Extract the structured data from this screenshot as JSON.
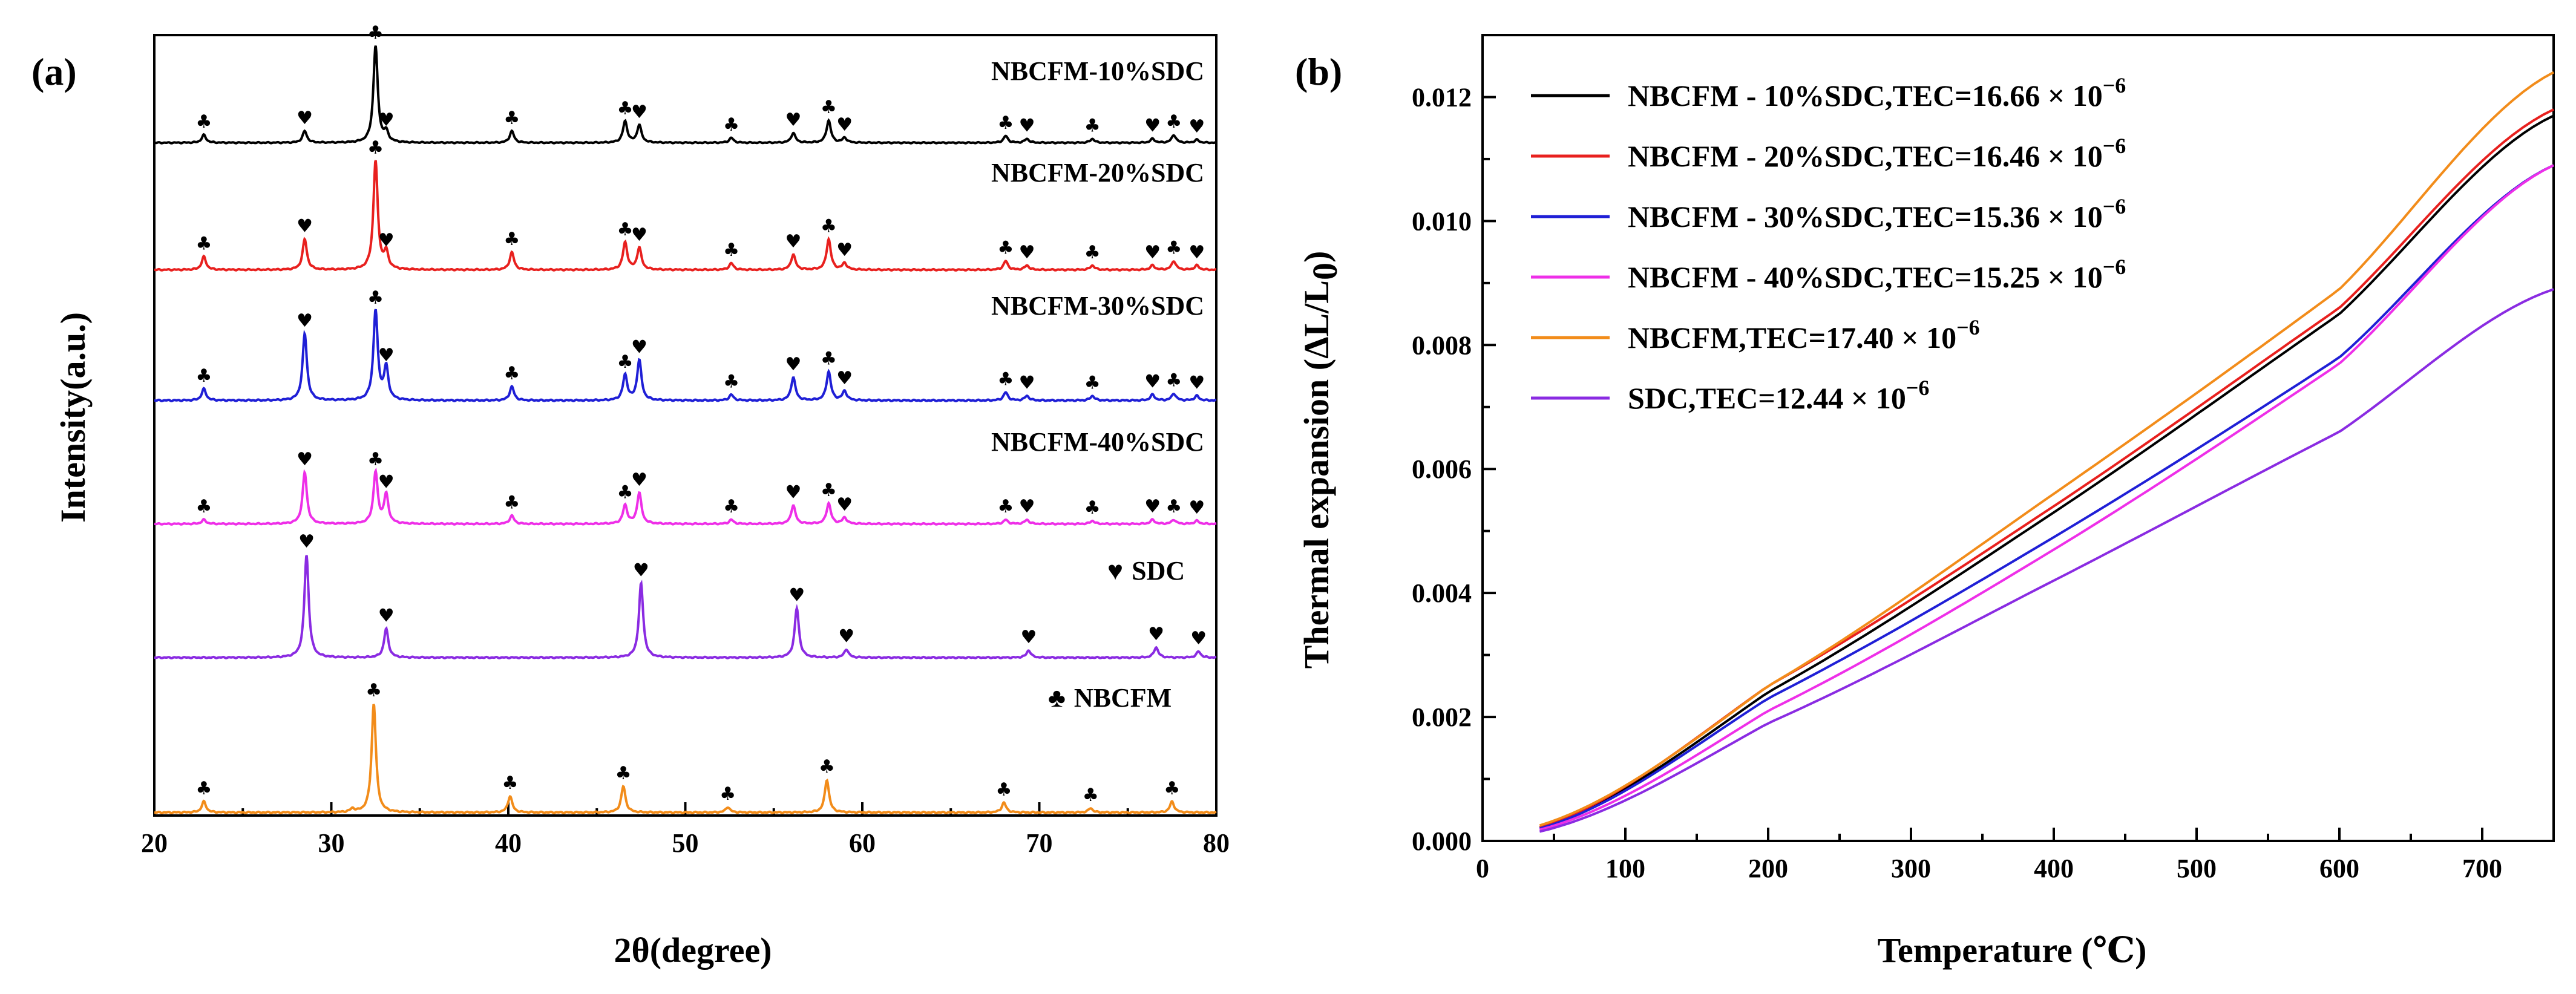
{
  "chart_data": [
    {
      "panel": "(a)",
      "type": "line",
      "xlabel": "2θ(degree)",
      "ylabel": "Intensity(a.u.)",
      "xlim": [
        20,
        80
      ],
      "x_ticks": [
        20,
        30,
        40,
        50,
        60,
        70,
        80
      ],
      "marker_legend": [
        {
          "symbol": "♥",
          "label": "SDC"
        },
        {
          "symbol": "♣",
          "label": "NBCFM"
        }
      ],
      "series": [
        {
          "name": "NBCFM-10%SDC",
          "color": "#000000",
          "peaks": [
            {
              "x": 22.8,
              "h": 0.08,
              "m": "♣"
            },
            {
              "x": 28.5,
              "h": 0.12,
              "m": "♥"
            },
            {
              "x": 32.5,
              "h": 1.0,
              "m": "♣"
            },
            {
              "x": 33.1,
              "h": 0.1,
              "m": "♥"
            },
            {
              "x": 40.2,
              "h": 0.12,
              "m": "♣"
            },
            {
              "x": 46.6,
              "h": 0.22,
              "m": "♣"
            },
            {
              "x": 47.4,
              "h": 0.18,
              "m": "♥"
            },
            {
              "x": 52.6,
              "h": 0.05,
              "m": "♣"
            },
            {
              "x": 56.1,
              "h": 0.1,
              "m": "♥"
            },
            {
              "x": 58.1,
              "h": 0.23,
              "m": "♣"
            },
            {
              "x": 59.0,
              "h": 0.05,
              "m": "♥"
            },
            {
              "x": 68.1,
              "h": 0.07,
              "m": "♣"
            },
            {
              "x": 69.3,
              "h": 0.04,
              "m": "♥"
            },
            {
              "x": 73.0,
              "h": 0.04,
              "m": "♣"
            },
            {
              "x": 76.4,
              "h": 0.04,
              "m": "♥"
            },
            {
              "x": 77.6,
              "h": 0.08,
              "m": "♣"
            },
            {
              "x": 78.9,
              "h": 0.03,
              "m": "♥"
            }
          ]
        },
        {
          "name": "NBCFM-20%SDC",
          "color": "#e8201e",
          "peaks": [
            {
              "x": 22.8,
              "h": 0.12,
              "m": "♣"
            },
            {
              "x": 28.5,
              "h": 0.28,
              "m": "♥"
            },
            {
              "x": 32.5,
              "h": 1.0,
              "m": "♣"
            },
            {
              "x": 33.1,
              "h": 0.15,
              "m": "♥"
            },
            {
              "x": 40.2,
              "h": 0.16,
              "m": "♣"
            },
            {
              "x": 46.6,
              "h": 0.25,
              "m": "♣"
            },
            {
              "x": 47.4,
              "h": 0.2,
              "m": "♥"
            },
            {
              "x": 52.6,
              "h": 0.06,
              "m": "♣"
            },
            {
              "x": 56.1,
              "h": 0.14,
              "m": "♥"
            },
            {
              "x": 58.1,
              "h": 0.28,
              "m": "♣"
            },
            {
              "x": 59.0,
              "h": 0.06,
              "m": "♥"
            },
            {
              "x": 68.1,
              "h": 0.08,
              "m": "♣"
            },
            {
              "x": 69.3,
              "h": 0.04,
              "m": "♥"
            },
            {
              "x": 73.0,
              "h": 0.04,
              "m": "♣"
            },
            {
              "x": 76.4,
              "h": 0.04,
              "m": "♥"
            },
            {
              "x": 77.6,
              "h": 0.08,
              "m": "♣"
            },
            {
              "x": 78.9,
              "h": 0.04,
              "m": "♥"
            }
          ]
        },
        {
          "name": "NBCFM-30%SDC",
          "color": "#1f1fd6",
          "peaks": [
            {
              "x": 22.8,
              "h": 0.1,
              "m": "♣"
            },
            {
              "x": 28.5,
              "h": 0.58,
              "m": "♥"
            },
            {
              "x": 32.5,
              "h": 0.78,
              "m": "♣"
            },
            {
              "x": 33.1,
              "h": 0.28,
              "m": "♥"
            },
            {
              "x": 40.2,
              "h": 0.12,
              "m": "♣"
            },
            {
              "x": 46.6,
              "h": 0.22,
              "m": "♣"
            },
            {
              "x": 47.4,
              "h": 0.35,
              "m": "♥"
            },
            {
              "x": 52.6,
              "h": 0.05,
              "m": "♣"
            },
            {
              "x": 56.1,
              "h": 0.2,
              "m": "♥"
            },
            {
              "x": 58.1,
              "h": 0.25,
              "m": "♣"
            },
            {
              "x": 59.0,
              "h": 0.08,
              "m": "♥"
            },
            {
              "x": 68.1,
              "h": 0.07,
              "m": "♣"
            },
            {
              "x": 69.3,
              "h": 0.04,
              "m": "♥"
            },
            {
              "x": 73.0,
              "h": 0.04,
              "m": "♣"
            },
            {
              "x": 76.4,
              "h": 0.05,
              "m": "♥"
            },
            {
              "x": 77.6,
              "h": 0.06,
              "m": "♣"
            },
            {
              "x": 78.9,
              "h": 0.04,
              "m": "♥"
            }
          ]
        },
        {
          "name": "NBCFM-40%SDC",
          "color": "#ee2fe8",
          "peaks": [
            {
              "x": 22.8,
              "h": 0.04,
              "m": "♣"
            },
            {
              "x": 28.5,
              "h": 0.5,
              "m": "♥"
            },
            {
              "x": 32.5,
              "h": 0.5,
              "m": "♣"
            },
            {
              "x": 33.1,
              "h": 0.28,
              "m": "♥"
            },
            {
              "x": 40.2,
              "h": 0.08,
              "m": "♣"
            },
            {
              "x": 46.6,
              "h": 0.18,
              "m": "♣"
            },
            {
              "x": 47.4,
              "h": 0.3,
              "m": "♥"
            },
            {
              "x": 52.6,
              "h": 0.04,
              "m": "♣"
            },
            {
              "x": 56.1,
              "h": 0.18,
              "m": "♥"
            },
            {
              "x": 58.1,
              "h": 0.2,
              "m": "♣"
            },
            {
              "x": 59.0,
              "h": 0.06,
              "m": "♥"
            },
            {
              "x": 68.1,
              "h": 0.04,
              "m": "♣"
            },
            {
              "x": 69.3,
              "h": 0.04,
              "m": "♥"
            },
            {
              "x": 73.0,
              "h": 0.03,
              "m": "♣"
            },
            {
              "x": 76.4,
              "h": 0.04,
              "m": "♥"
            },
            {
              "x": 77.6,
              "h": 0.04,
              "m": "♣"
            },
            {
              "x": 78.9,
              "h": 0.03,
              "m": "♥"
            }
          ]
        },
        {
          "name": "SDC",
          "color": "#8a2be2",
          "peaks": [
            {
              "x": 28.6,
              "h": 1.0,
              "m": "♥"
            },
            {
              "x": 33.1,
              "h": 0.28,
              "m": "♥"
            },
            {
              "x": 47.5,
              "h": 0.72,
              "m": "♥"
            },
            {
              "x": 56.3,
              "h": 0.48,
              "m": "♥"
            },
            {
              "x": 59.1,
              "h": 0.08,
              "m": "♥"
            },
            {
              "x": 69.4,
              "h": 0.07,
              "m": "♥"
            },
            {
              "x": 76.6,
              "h": 0.1,
              "m": "♥"
            },
            {
              "x": 79.0,
              "h": 0.06,
              "m": "♥"
            }
          ]
        },
        {
          "name": "NBCFM",
          "color": "#f28c1a",
          "peaks": [
            {
              "x": 22.8,
              "h": 0.1,
              "m": "♣"
            },
            {
              "x": 31.2,
              "h": 0.03,
              "m": ""
            },
            {
              "x": 32.4,
              "h": 1.0,
              "m": "♣"
            },
            {
              "x": 40.1,
              "h": 0.15,
              "m": "♣"
            },
            {
              "x": 46.5,
              "h": 0.24,
              "m": "♣"
            },
            {
              "x": 52.4,
              "h": 0.05,
              "m": "♣"
            },
            {
              "x": 58.0,
              "h": 0.3,
              "m": "♣"
            },
            {
              "x": 68.0,
              "h": 0.09,
              "m": "♣"
            },
            {
              "x": 72.9,
              "h": 0.04,
              "m": "♣"
            },
            {
              "x": 77.5,
              "h": 0.1,
              "m": "♣"
            }
          ]
        }
      ]
    },
    {
      "panel": "(b)",
      "type": "line",
      "xlabel": "Temperature (℃)",
      "ylabel_main": "Thermal expansion (ΔL/L",
      "ylabel_sub": "0",
      "ylabel_end": ")",
      "xlim": [
        0,
        750
      ],
      "ylim": [
        0,
        0.013
      ],
      "x_ticks": [
        0,
        100,
        200,
        300,
        400,
        500,
        600,
        700
      ],
      "y_ticks": [
        "0.000",
        "0.002",
        "0.004",
        "0.006",
        "0.008",
        "0.010",
        "0.012"
      ],
      "tec_unit": "× 10",
      "tec_exp": "−6",
      "series": [
        {
          "name": "NBCFM - 10%SDC,TEC=16.66",
          "color": "#000000",
          "x": [
            40,
            200,
            400,
            600,
            750
          ],
          "y": [
            0.00022,
            0.0024,
            0.0053,
            0.0085,
            0.0117
          ]
        },
        {
          "name": "NBCFM - 20%SDC,TEC=16.46",
          "color": "#e8201e",
          "x": [
            40,
            200,
            400,
            600,
            750
          ],
          "y": [
            0.00022,
            0.0025,
            0.0054,
            0.0086,
            0.0118
          ]
        },
        {
          "name": "NBCFM - 30%SDC,TEC=15.36",
          "color": "#1f1fd6",
          "x": [
            40,
            200,
            400,
            600,
            750
          ],
          "y": [
            0.0002,
            0.0023,
            0.0049,
            0.0078,
            0.0109
          ]
        },
        {
          "name": "NBCFM - 40%SDC,TEC=15.25",
          "color": "#ee2fe8",
          "x": [
            40,
            200,
            400,
            600,
            750
          ],
          "y": [
            0.00018,
            0.0021,
            0.0047,
            0.0077,
            0.0109
          ]
        },
        {
          "name": "NBCFM,TEC=17.40",
          "color": "#f28c1a",
          "x": [
            40,
            200,
            400,
            600,
            750
          ],
          "y": [
            0.00025,
            0.0025,
            0.0056,
            0.0089,
            0.0124
          ]
        },
        {
          "name": "SDC,TEC=12.44",
          "color": "#8a2be2",
          "x": [
            40,
            200,
            400,
            600,
            750
          ],
          "y": [
            0.00015,
            0.0019,
            0.0042,
            0.0066,
            0.0089
          ]
        }
      ]
    }
  ]
}
